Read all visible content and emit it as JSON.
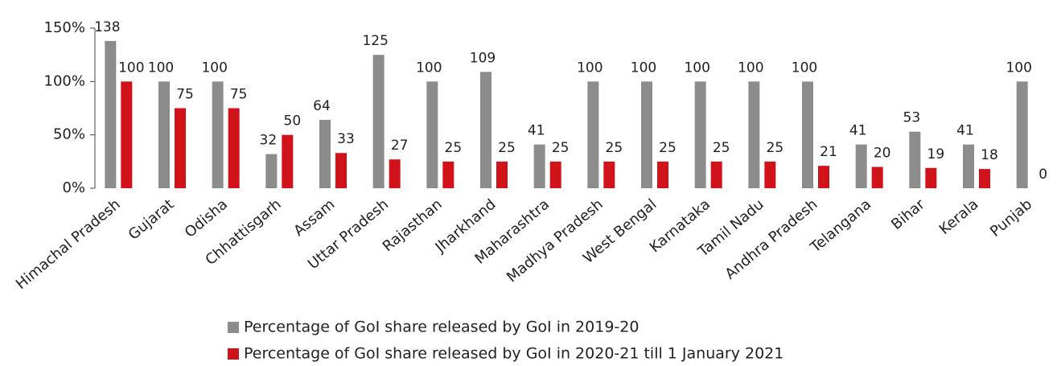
{
  "chart_data": {
    "type": "bar",
    "categories": [
      "Himachal Pradesh",
      "Gujarat",
      "Odisha",
      "Chhattisgarh",
      "Assam",
      "Uttar Pradesh",
      "Rajasthan",
      "Jharkhand",
      "Maharashtra",
      "Madhya Pradesh",
      "West Bengal",
      "Karnataka",
      "Tamil Nadu",
      "Andhra Pradesh",
      "Telangana",
      "Bihar",
      "Kerala",
      "Punjab"
    ],
    "series": [
      {
        "name": "Percentage of GoI share released by GoI in 2019-20",
        "color": "#8c8c8c",
        "values": [
          138,
          100,
          100,
          32,
          64,
          125,
          100,
          109,
          41,
          100,
          100,
          100,
          100,
          100,
          41,
          53,
          41,
          100
        ]
      },
      {
        "name": "Percentage of GoI share released by GoI in 2020-21 till 1 January 2021",
        "color": "#d0121b",
        "values": [
          100,
          75,
          75,
          50,
          33,
          27,
          25,
          25,
          25,
          25,
          25,
          25,
          25,
          21,
          20,
          19,
          18,
          0
        ]
      }
    ],
    "ylim": [
      0,
      150
    ],
    "yticks": [
      {
        "value": 0,
        "label": "0%"
      },
      {
        "value": 50,
        "label": "50%"
      },
      {
        "value": 100,
        "label": "100%"
      },
      {
        "value": 150,
        "label": "150%"
      }
    ],
    "grid": false,
    "legend": "bottom"
  }
}
